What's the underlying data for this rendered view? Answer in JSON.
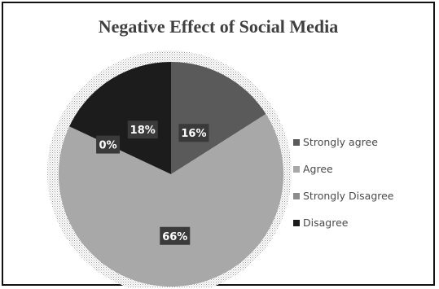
{
  "chart_data": {
    "type": "pie",
    "title": "Negative Effect of Social Media",
    "categories": [
      "Strongly agree",
      "Agree",
      "Strongly Disagree",
      "Disagree"
    ],
    "values": [
      16,
      66,
      0,
      18
    ],
    "data_labels": [
      "16%",
      "66%",
      "0%",
      "18%"
    ],
    "colors": [
      "#5a5a5a",
      "#a8a8a8",
      "#8c8c8c",
      "#1c1c1c"
    ],
    "legend": {
      "position": "right",
      "entries": [
        "Strongly agree",
        "Agree",
        "Strongly Disagree",
        "Disagree"
      ]
    }
  }
}
